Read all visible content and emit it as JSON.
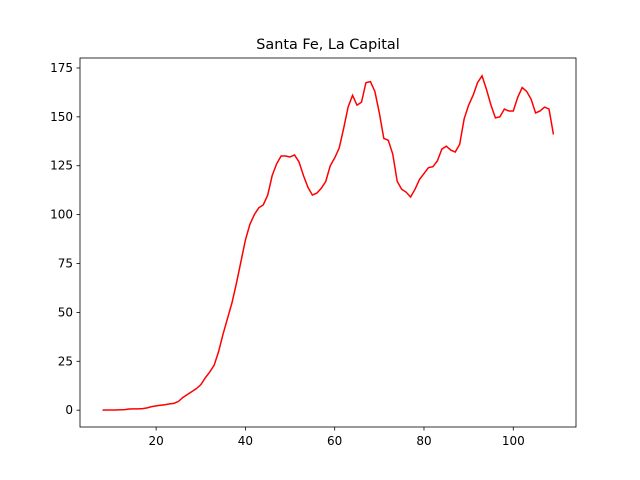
{
  "chart_data": {
    "type": "line",
    "title": "Santa Fe, La Capital",
    "x": [
      8,
      9,
      10,
      11,
      12,
      13,
      14,
      15,
      16,
      17,
      18,
      19,
      20,
      21,
      22,
      23,
      24,
      25,
      26,
      27,
      28,
      29,
      30,
      31,
      32,
      33,
      34,
      35,
      36,
      37,
      38,
      39,
      40,
      41,
      42,
      43,
      44,
      45,
      46,
      47,
      48,
      49,
      50,
      51,
      52,
      53,
      54,
      55,
      56,
      57,
      58,
      59,
      60,
      61,
      62,
      63,
      64,
      65,
      66,
      67,
      68,
      69,
      70,
      71,
      72,
      73,
      74,
      75,
      76,
      77,
      78,
      79,
      80,
      81,
      82,
      83,
      84,
      85,
      86,
      87,
      88,
      89,
      90,
      91,
      92,
      93,
      94,
      95,
      96,
      97,
      98,
      99,
      100,
      101,
      102,
      103,
      104,
      105,
      106,
      107,
      108,
      109
    ],
    "series": [
      {
        "color": "#ff0000",
        "values": [
          0,
          0.1,
          0.1,
          0.1,
          0.2,
          0.3,
          0.6,
          0.7,
          0.7,
          0.8,
          1.2,
          1.8,
          2.2,
          2.5,
          2.8,
          3.2,
          3.5,
          4.5,
          6.5,
          8,
          9.5,
          11,
          13,
          16.5,
          19.5,
          23,
          30,
          39,
          47,
          55,
          65,
          76,
          87,
          95,
          100,
          103.5,
          105,
          110,
          120,
          126,
          130,
          130,
          129.5,
          130.5,
          127,
          120,
          114,
          110,
          111,
          113.5,
          117,
          125,
          129,
          134,
          144,
          155,
          161,
          156,
          157.5,
          167.5,
          168,
          163,
          152,
          139,
          138,
          131,
          117,
          113,
          111.5,
          109,
          113,
          118,
          121,
          124,
          124.5,
          127.5,
          133.5,
          135,
          133,
          132,
          136,
          149,
          156,
          161,
          167.5,
          171,
          164,
          156,
          149.5,
          150,
          154,
          153,
          153,
          160,
          165,
          163,
          159,
          152,
          153,
          155,
          154,
          141
        ]
      }
    ],
    "xlim": [
      2.95,
      114.05
    ],
    "xticks": [
      20,
      40,
      60,
      80,
      100
    ],
    "ylim": [
      -8.6,
      180.1
    ],
    "yticks": [
      0,
      25,
      50,
      75,
      100,
      125,
      150,
      175
    ]
  }
}
